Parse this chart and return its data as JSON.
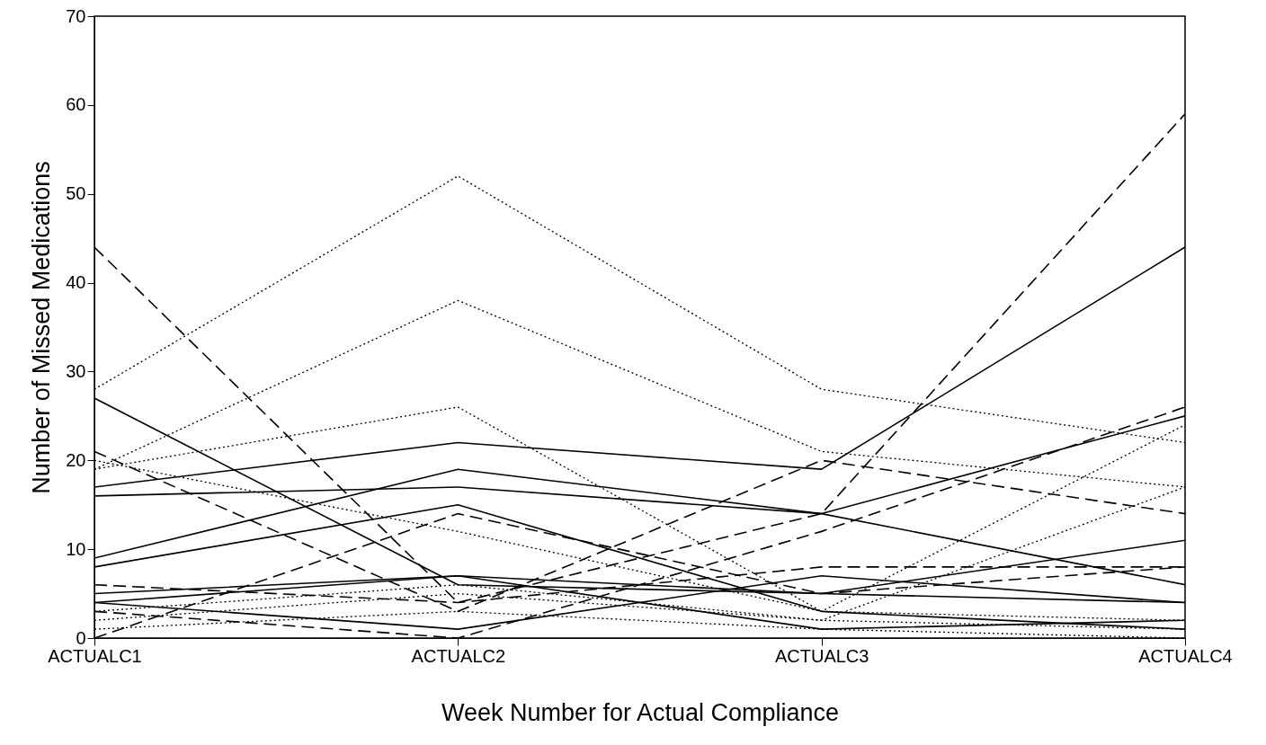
{
  "chart_data": {
    "type": "line",
    "xlabel": "Week Number for Actual Compliance",
    "ylabel": "Number of Missed Medications",
    "categories": [
      "ACTUALC1",
      "ACTUALC2",
      "ACTUALC3",
      "ACTUALC4"
    ],
    "ylim": [
      0,
      70
    ],
    "yticks": [
      0,
      10,
      20,
      30,
      40,
      50,
      60,
      70
    ],
    "grid": false,
    "series": [
      {
        "color": "#000000",
        "line_style": "dotted",
        "values": [
          28,
          52,
          28,
          22
        ]
      },
      {
        "color": "#000000",
        "line_style": "dotted",
        "values": [
          19,
          38,
          21,
          17
        ]
      },
      {
        "color": "#000000",
        "line_style": "dotted",
        "values": [
          19,
          26,
          3,
          2
        ]
      },
      {
        "color": "#000000",
        "line_style": "dashed",
        "values": [
          44,
          4,
          14,
          59
        ]
      },
      {
        "color": "#000000",
        "line_style": "solid",
        "values": [
          27,
          6,
          5,
          4
        ]
      },
      {
        "color": "#000000",
        "line_style": "solid",
        "values": [
          17,
          22,
          19,
          44
        ]
      },
      {
        "color": "#000000",
        "line_style": "solid",
        "values": [
          16,
          17,
          14,
          6
        ]
      },
      {
        "color": "#000000",
        "line_style": "solid",
        "values": [
          9,
          19,
          14,
          25
        ]
      },
      {
        "color": "#000000",
        "line_style": "solid",
        "values": [
          8,
          15,
          3,
          1
        ]
      },
      {
        "color": "#000000",
        "line_style": "dashed",
        "values": [
          21,
          3,
          20,
          14
        ]
      },
      {
        "color": "#000000",
        "line_style": "dashed",
        "values": [
          0,
          14,
          5,
          8
        ]
      },
      {
        "color": "#000000",
        "line_style": "dashed",
        "values": [
          3,
          0,
          12,
          26
        ]
      },
      {
        "color": "#000000",
        "line_style": "solid",
        "values": [
          4,
          7,
          5,
          11
        ]
      },
      {
        "color": "#000000",
        "line_style": "solid",
        "values": [
          4,
          1,
          7,
          4
        ]
      },
      {
        "color": "#000000",
        "line_style": "dashed",
        "values": [
          6,
          4,
          8,
          8
        ]
      },
      {
        "color": "#000000",
        "line_style": "dotted",
        "values": [
          20,
          12,
          3,
          24
        ]
      },
      {
        "color": "#000000",
        "line_style": "dotted",
        "values": [
          2,
          5,
          2,
          17
        ]
      },
      {
        "color": "#000000",
        "line_style": "solid",
        "values": [
          5,
          7,
          1,
          2
        ]
      },
      {
        "color": "#000000",
        "line_style": "dotted",
        "values": [
          1,
          3,
          1,
          0
        ]
      },
      {
        "color": "#000000",
        "line_style": "dotted",
        "values": [
          3,
          6,
          2,
          1
        ]
      }
    ]
  }
}
